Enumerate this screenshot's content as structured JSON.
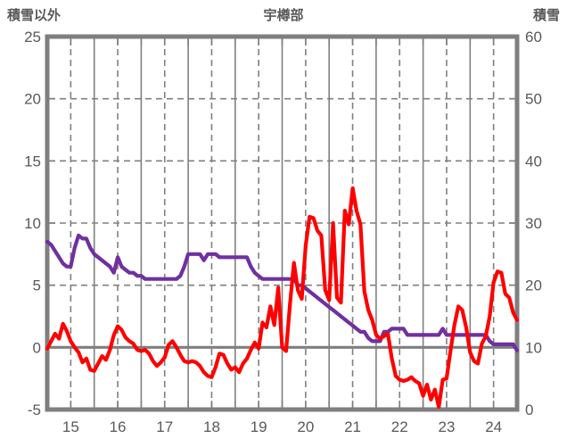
{
  "chart_data": {
    "type": "line",
    "title": "宇樽部",
    "left_axis": {
      "title": "積雪以外",
      "min": -5,
      "max": 25,
      "ticks": [
        25,
        20,
        15,
        10,
        5,
        0,
        -5
      ]
    },
    "right_axis": {
      "title": "積雪",
      "min": 0,
      "max": 60,
      "ticks": [
        60,
        50,
        40,
        30,
        20,
        10,
        0
      ]
    },
    "x_axis": {
      "tick_labels": [
        "15",
        "16",
        "17",
        "18",
        "19",
        "20",
        "21",
        "22",
        "23",
        "24"
      ],
      "points_per_day": 12
    },
    "grid": {
      "line_color": "#808080",
      "border_color": "#7F7F7F",
      "text_color": "#595959",
      "zero_line": true,
      "vertical_solid_every_day": true,
      "vertical_dashed_every_half_day": true
    },
    "series": [
      {
        "id": "purple-line",
        "axis": "right",
        "color": "#7030A0",
        "values": [
          27,
          26.5,
          25.5,
          24.5,
          23.5,
          23,
          23,
          26,
          28,
          27.5,
          27.5,
          26,
          25,
          24.5,
          24,
          23.5,
          23,
          22,
          24.5,
          23,
          22.5,
          22,
          22,
          21.5,
          21.5,
          21,
          21,
          21,
          21,
          21,
          21,
          21,
          21,
          21,
          21.5,
          23,
          25,
          25,
          25,
          25,
          24,
          25,
          25,
          25,
          24.5,
          24.5,
          24.5,
          24.5,
          24.5,
          24.5,
          24.5,
          24.5,
          23,
          22,
          21.5,
          21,
          21,
          21,
          21,
          21,
          21,
          21,
          21,
          21,
          20,
          20,
          19.5,
          19,
          18.5,
          18,
          17.5,
          17,
          16.5,
          16,
          15.5,
          15,
          14.5,
          14,
          13.5,
          13,
          12.5,
          12.5,
          11.5,
          11,
          11,
          11,
          12.5,
          12.5,
          13,
          13,
          13,
          13,
          12,
          12,
          12,
          12,
          12,
          12,
          12,
          12,
          12,
          13,
          12,
          12,
          12,
          12,
          12,
          12,
          12,
          12,
          12,
          12,
          12,
          11,
          10.5,
          10.5,
          10.5,
          10.5,
          10.5,
          10.5,
          9.5
        ]
      },
      {
        "id": "red-line",
        "axis": "left",
        "color": "#FF0000",
        "values": [
          -0.1,
          0.5,
          1.1,
          0.7,
          1.9,
          1.3,
          0.5,
          0.0,
          -0.4,
          -1.2,
          -0.9,
          -1.8,
          -1.9,
          -1.3,
          -0.7,
          -1.0,
          -0.2,
          1.0,
          1.7,
          1.4,
          0.8,
          0.5,
          0.3,
          -0.2,
          -0.3,
          -0.2,
          -0.5,
          -1.1,
          -1.5,
          -1.2,
          -0.8,
          0.2,
          0.5,
          0.0,
          -0.6,
          -1.1,
          -1.2,
          -1.1,
          -1.2,
          -1.5,
          -2.0,
          -2.3,
          -2.4,
          -1.6,
          -0.5,
          -0.6,
          -1.3,
          -1.8,
          -1.6,
          -2.0,
          -1.3,
          -0.9,
          -0.2,
          0.4,
          -0.1,
          2.0,
          1.6,
          3.3,
          1.8,
          4.8,
          0.0,
          -0.3,
          3.5,
          6.8,
          4.6,
          3.9,
          8.2,
          10.5,
          10.4,
          9.4,
          9.0,
          4.6,
          3.8,
          10.0,
          4.0,
          3.6,
          11.0,
          9.9,
          12.8,
          11.0,
          9.9,
          4.5,
          3.0,
          2.2,
          1.0,
          0.7,
          0.9,
          1.1,
          -0.9,
          -2.3,
          -2.6,
          -2.7,
          -2.6,
          -2.4,
          -2.7,
          -2.9,
          -3.9,
          -3.0,
          -4.2,
          -3.4,
          -4.8,
          -2.6,
          -2.5,
          -0.3,
          1.8,
          3.3,
          3.0,
          1.6,
          -0.4,
          -1.1,
          -1.3,
          0.3,
          0.9,
          2.5,
          5.2,
          6.1,
          6.0,
          4.3,
          4.0,
          2.8,
          2.2
        ]
      }
    ]
  }
}
